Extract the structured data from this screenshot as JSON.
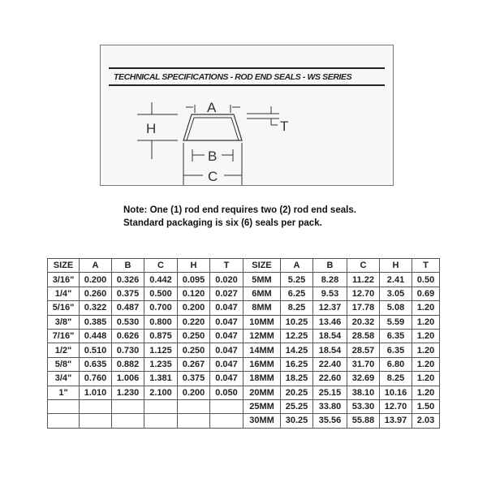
{
  "header": {
    "title": "TECHNICAL SPECIFICATIONS - ROD END SEALS - WS SERIES"
  },
  "diagram": {
    "labels": {
      "a": "A",
      "b": "B",
      "c": "C",
      "h": "H",
      "t": "T"
    }
  },
  "note": {
    "line1": "Note: One (1) rod end requires two (2) rod end seals.",
    "line2": "Standard packaging is six (6) seals per pack."
  },
  "table": {
    "headers": [
      "SIZE",
      "A",
      "B",
      "C",
      "H",
      "T",
      "SIZE",
      "A",
      "B",
      "C",
      "H",
      "T"
    ],
    "rows": [
      [
        "3/16\"",
        "0.200",
        "0.326",
        "0.442",
        "0.095",
        "0.020",
        "5MM",
        "5.25",
        "8.28",
        "11.22",
        "2.41",
        "0.50"
      ],
      [
        "1/4\"",
        "0.260",
        "0.375",
        "0.500",
        "0.120",
        "0.027",
        "6MM",
        "6.25",
        "9.53",
        "12.70",
        "3.05",
        "0.69"
      ],
      [
        "5/16\"",
        "0.322",
        "0.487",
        "0.700",
        "0.200",
        "0.047",
        "8MM",
        "8.25",
        "12.37",
        "17.78",
        "5.08",
        "1.20"
      ],
      [
        "3/8\"",
        "0.385",
        "0.530",
        "0.800",
        "0.220",
        "0.047",
        "10MM",
        "10.25",
        "13.46",
        "20.32",
        "5.59",
        "1.20"
      ],
      [
        "7/16\"",
        "0.448",
        "0.626",
        "0.875",
        "0.250",
        "0.047",
        "12MM",
        "12.25",
        "18.54",
        "28.58",
        "6.35",
        "1.20"
      ],
      [
        "1/2\"",
        "0.510",
        "0.730",
        "1.125",
        "0.250",
        "0.047",
        "14MM",
        "14.25",
        "18.54",
        "28.57",
        "6.35",
        "1.20"
      ],
      [
        "5/8\"",
        "0.635",
        "0.882",
        "1.235",
        "0.267",
        "0.047",
        "16MM",
        "16.25",
        "22.40",
        "31.70",
        "6.80",
        "1.20"
      ],
      [
        "3/4\"",
        "0.760",
        "1.006",
        "1.381",
        "0.375",
        "0.047",
        "18MM",
        "18.25",
        "22.60",
        "32.69",
        "8.25",
        "1.20"
      ],
      [
        "1\"",
        "1.010",
        "1.230",
        "2.100",
        "0.200",
        "0.050",
        "20MM",
        "20.25",
        "25.15",
        "38.10",
        "10.16",
        "1.20"
      ],
      [
        "",
        "",
        "",
        "",
        "",
        "",
        "25MM",
        "25.25",
        "33.80",
        "53.30",
        "12.70",
        "1.50"
      ],
      [
        "",
        "",
        "",
        "",
        "",
        "",
        "30MM",
        "30.25",
        "35.56",
        "55.88",
        "13.97",
        "2.03"
      ]
    ]
  }
}
